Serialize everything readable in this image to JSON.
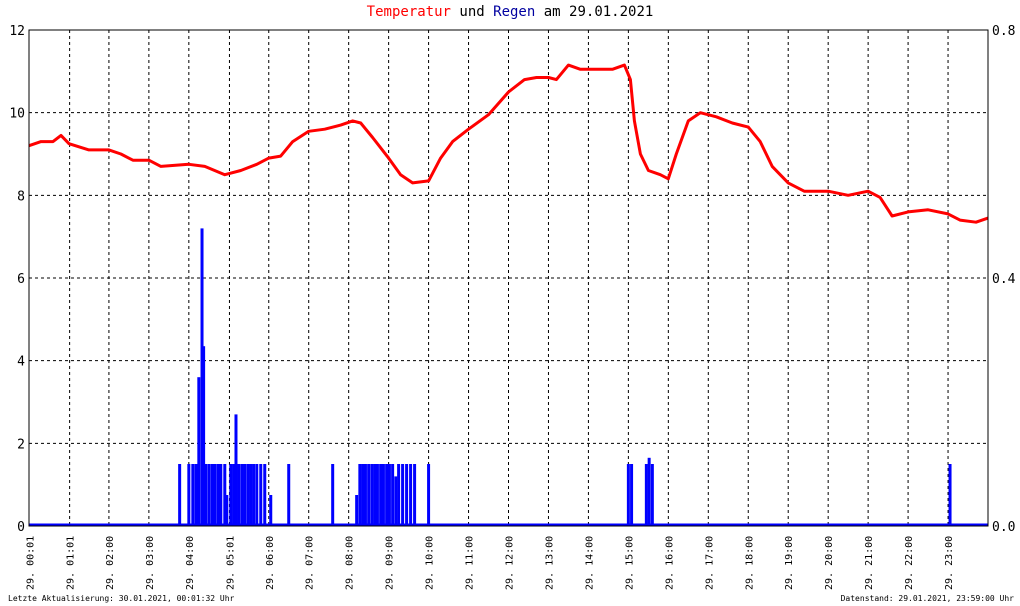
{
  "title": {
    "word_temp": "Temperatur",
    "word_und": "und",
    "word_regen": "Regen",
    "word_am": "am",
    "date": "29.01.2021"
  },
  "footer": {
    "left": "Letzte Aktualisierung: 30.01.2021, 00:01:32 Uhr",
    "right": "Datenstand: 29.01.2021, 23:59:00 Uhr"
  },
  "colors": {
    "temperature": "#ff0000",
    "rain": "#0000ff",
    "grid": "#000000"
  },
  "chart_data": {
    "type": "line",
    "x_axis": {
      "range_hours": [
        0,
        24
      ],
      "ticks": [
        {
          "h": 0.0167,
          "top": "29.",
          "bottom": "00:01"
        },
        {
          "h": 1.0167,
          "top": "29.",
          "bottom": "01:01"
        },
        {
          "h": 2,
          "top": "29.",
          "bottom": "02:00"
        },
        {
          "h": 3,
          "top": "29.",
          "bottom": "03:00"
        },
        {
          "h": 4,
          "top": "29.",
          "bottom": "04:00"
        },
        {
          "h": 5.0167,
          "top": "29.",
          "bottom": "05:01"
        },
        {
          "h": 6,
          "top": "29.",
          "bottom": "06:00"
        },
        {
          "h": 7,
          "top": "29.",
          "bottom": "07:00"
        },
        {
          "h": 8,
          "top": "29.",
          "bottom": "08:00"
        },
        {
          "h": 9,
          "top": "29.",
          "bottom": "09:00"
        },
        {
          "h": 10,
          "top": "29.",
          "bottom": "10:00"
        },
        {
          "h": 11,
          "top": "29.",
          "bottom": "11:00"
        },
        {
          "h": 12,
          "top": "29.",
          "bottom": "12:00"
        },
        {
          "h": 13,
          "top": "29.",
          "bottom": "13:00"
        },
        {
          "h": 14,
          "top": "29.",
          "bottom": "14:00"
        },
        {
          "h": 15,
          "top": "29.",
          "bottom": "15:00"
        },
        {
          "h": 16,
          "top": "29.",
          "bottom": "16:00"
        },
        {
          "h": 17,
          "top": "29.",
          "bottom": "17:00"
        },
        {
          "h": 18,
          "top": "29.",
          "bottom": "18:00"
        },
        {
          "h": 19,
          "top": "29.",
          "bottom": "19:00"
        },
        {
          "h": 20,
          "top": "29.",
          "bottom": "20:00"
        },
        {
          "h": 21,
          "top": "29.",
          "bottom": "21:00"
        },
        {
          "h": 22,
          "top": "29.",
          "bottom": "22:00"
        },
        {
          "h": 23,
          "top": "29.",
          "bottom": "23:00"
        }
      ]
    },
    "y_left": {
      "ylim": [
        0,
        12
      ],
      "ticks": [
        "0",
        "2",
        "4",
        "6",
        "8",
        "10",
        "12"
      ]
    },
    "y_right": {
      "ylim": [
        0,
        0.8
      ],
      "ticks": [
        {
          "v": 0,
          "label": "0.0"
        },
        {
          "v": 0.4,
          "label": "0.4"
        },
        {
          "v": 0.8,
          "label": "0.8"
        }
      ]
    },
    "grid": true,
    "series": [
      {
        "name": "Temperatur",
        "kind": "line",
        "points": [
          [
            0,
            9.2
          ],
          [
            0.3,
            9.3
          ],
          [
            0.6,
            9.3
          ],
          [
            0.8,
            9.45
          ],
          [
            1.0,
            9.25
          ],
          [
            1.5,
            9.1
          ],
          [
            2.0,
            9.1
          ],
          [
            2.3,
            9.0
          ],
          [
            2.6,
            8.85
          ],
          [
            3.0,
            8.85
          ],
          [
            3.3,
            8.7
          ],
          [
            4.0,
            8.75
          ],
          [
            4.4,
            8.7
          ],
          [
            4.9,
            8.5
          ],
          [
            5.3,
            8.6
          ],
          [
            5.7,
            8.75
          ],
          [
            6.0,
            8.9
          ],
          [
            6.3,
            8.95
          ],
          [
            6.6,
            9.3
          ],
          [
            7.0,
            9.55
          ],
          [
            7.4,
            9.6
          ],
          [
            7.8,
            9.7
          ],
          [
            8.1,
            9.8
          ],
          [
            8.3,
            9.75
          ],
          [
            8.6,
            9.4
          ],
          [
            9.0,
            8.9
          ],
          [
            9.3,
            8.5
          ],
          [
            9.6,
            8.3
          ],
          [
            10.0,
            8.35
          ],
          [
            10.3,
            8.9
          ],
          [
            10.6,
            9.3
          ],
          [
            11.0,
            9.6
          ],
          [
            11.5,
            9.95
          ],
          [
            12.0,
            10.5
          ],
          [
            12.4,
            10.8
          ],
          [
            12.7,
            10.85
          ],
          [
            13.0,
            10.85
          ],
          [
            13.2,
            10.8
          ],
          [
            13.5,
            11.15
          ],
          [
            13.8,
            11.05
          ],
          [
            14.2,
            11.05
          ],
          [
            14.6,
            11.05
          ],
          [
            14.9,
            11.15
          ],
          [
            15.05,
            10.8
          ],
          [
            15.15,
            9.8
          ],
          [
            15.3,
            9.0
          ],
          [
            15.5,
            8.6
          ],
          [
            15.8,
            8.5
          ],
          [
            16.0,
            8.4
          ],
          [
            16.2,
            9.0
          ],
          [
            16.5,
            9.8
          ],
          [
            16.8,
            10.0
          ],
          [
            17.2,
            9.9
          ],
          [
            17.6,
            9.75
          ],
          [
            18.0,
            9.65
          ],
          [
            18.3,
            9.3
          ],
          [
            18.6,
            8.7
          ],
          [
            19.0,
            8.3
          ],
          [
            19.4,
            8.1
          ],
          [
            20.0,
            8.1
          ],
          [
            20.5,
            8.0
          ],
          [
            21.0,
            8.1
          ],
          [
            21.3,
            7.95
          ],
          [
            21.6,
            7.5
          ],
          [
            22.0,
            7.6
          ],
          [
            22.5,
            7.65
          ],
          [
            23.0,
            7.55
          ],
          [
            23.3,
            7.4
          ],
          [
            23.7,
            7.35
          ],
          [
            24.0,
            7.45
          ]
        ]
      },
      {
        "name": "Regen",
        "kind": "bar",
        "values": [
          [
            3.77,
            0.1
          ],
          [
            4.0,
            0.1
          ],
          [
            4.1,
            0.1
          ],
          [
            4.18,
            0.1
          ],
          [
            4.25,
            0.24
          ],
          [
            4.33,
            0.48
          ],
          [
            4.37,
            0.29
          ],
          [
            4.42,
            0.1
          ],
          [
            4.5,
            0.1
          ],
          [
            4.58,
            0.1
          ],
          [
            4.65,
            0.1
          ],
          [
            4.73,
            0.1
          ],
          [
            4.8,
            0.1
          ],
          [
            4.9,
            0.1
          ],
          [
            4.95,
            0.05
          ],
          [
            5.05,
            0.1
          ],
          [
            5.12,
            0.1
          ],
          [
            5.18,
            0.18
          ],
          [
            5.25,
            0.1
          ],
          [
            5.33,
            0.1
          ],
          [
            5.4,
            0.1
          ],
          [
            5.48,
            0.1
          ],
          [
            5.55,
            0.1
          ],
          [
            5.62,
            0.1
          ],
          [
            5.7,
            0.1
          ],
          [
            5.8,
            0.1
          ],
          [
            5.9,
            0.1
          ],
          [
            6.05,
            0.05
          ],
          [
            6.5,
            0.1
          ],
          [
            7.6,
            0.1
          ],
          [
            8.2,
            0.05
          ],
          [
            8.28,
            0.1
          ],
          [
            8.35,
            0.1
          ],
          [
            8.42,
            0.1
          ],
          [
            8.5,
            0.1
          ],
          [
            8.58,
            0.1
          ],
          [
            8.65,
            0.1
          ],
          [
            8.72,
            0.1
          ],
          [
            8.8,
            0.1
          ],
          [
            8.87,
            0.1
          ],
          [
            8.95,
            0.1
          ],
          [
            9.02,
            0.1
          ],
          [
            9.1,
            0.1
          ],
          [
            9.18,
            0.08
          ],
          [
            9.25,
            0.1
          ],
          [
            9.35,
            0.1
          ],
          [
            9.45,
            0.1
          ],
          [
            9.55,
            0.1
          ],
          [
            9.65,
            0.1
          ],
          [
            10.0,
            0.1
          ],
          [
            15.0,
            0.1
          ],
          [
            15.08,
            0.1
          ],
          [
            15.45,
            0.1
          ],
          [
            15.52,
            0.11
          ],
          [
            15.6,
            0.1
          ],
          [
            23.05,
            0.1
          ]
        ]
      }
    ]
  }
}
